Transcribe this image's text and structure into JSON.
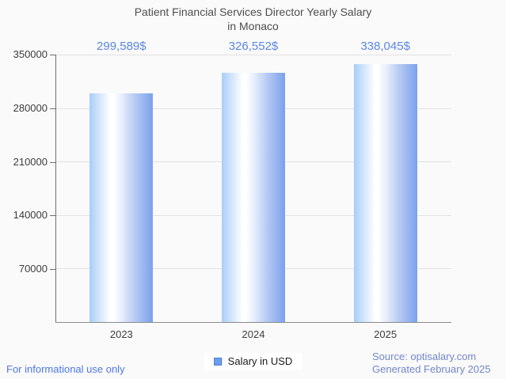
{
  "title": {
    "line1": "Patient Financial Services Director Yearly Salary",
    "line2": "in Monaco"
  },
  "chart_data": {
    "type": "bar",
    "title": "Patient Financial Services Director Yearly Salary in Monaco",
    "categories": [
      "2023",
      "2024",
      "2025"
    ],
    "values": [
      299589,
      326552,
      338045
    ],
    "value_labels": [
      "299,589$",
      "326,552$",
      "338,045$"
    ],
    "ylim": [
      0,
      350000
    ],
    "yticks": [
      350000,
      280000,
      210000,
      140000,
      70000
    ],
    "ytick_labels": [
      "350000",
      "280000",
      "210000",
      "140000",
      "70000"
    ],
    "grid": true,
    "legend_position": "bottom",
    "legend": [
      {
        "label": "Salary in USD",
        "color": "#6d9eeb"
      }
    ]
  },
  "footer": {
    "disclaimer": "For informational use only",
    "source": "Source: optisalary.com",
    "generated": "Generated February 2025"
  },
  "colors": {
    "value_label_blue": "#5b86e3",
    "bar_gradient_left": "#a8cdf9",
    "bar_gradient_center": "#ffffff",
    "bar_gradient_right": "#7aa1ec",
    "legend_swatch": "#6d9eeb",
    "disclaimer_blue": "#4d79e6",
    "source_blue": "#7387c9",
    "title_gray": "#4e4e4e"
  }
}
